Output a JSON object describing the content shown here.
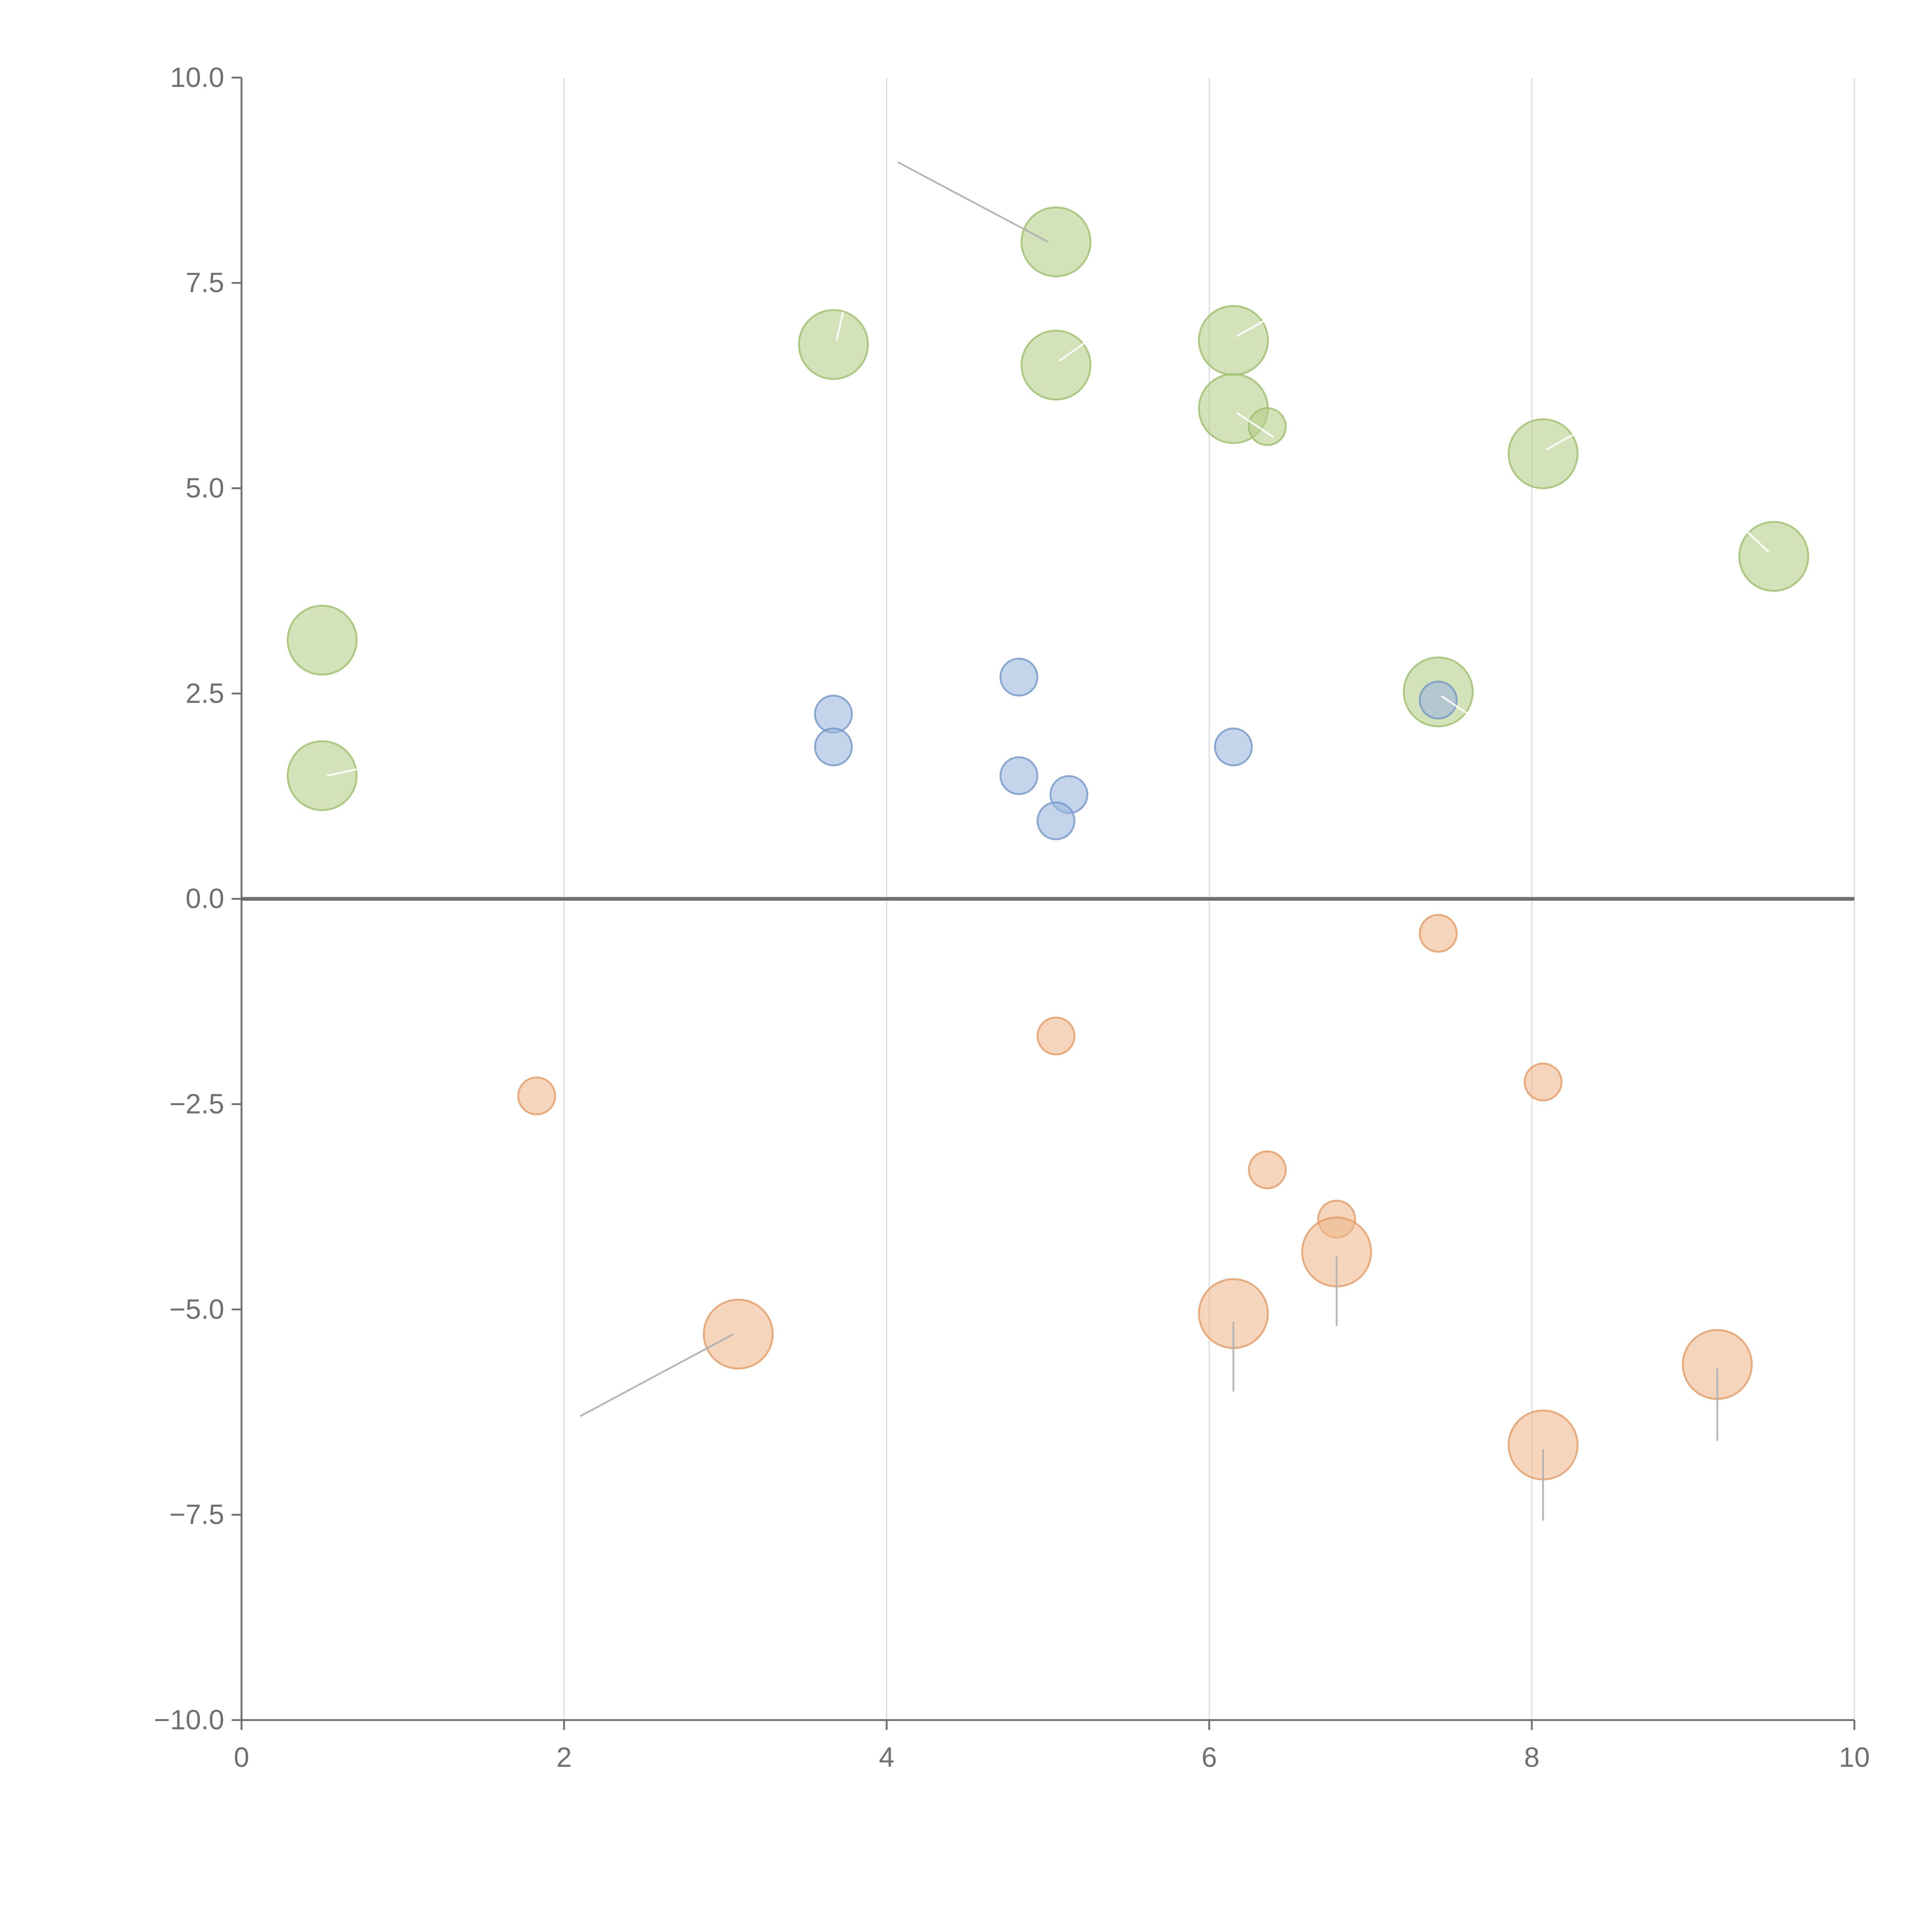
{
  "chart_data": {
    "type": "scatter",
    "title": "",
    "xlabel": "",
    "ylabel": "",
    "xlim": [
      0,
      10
    ],
    "ylim": [
      -10,
      10
    ],
    "x_ticks": [
      0,
      2,
      4,
      6,
      8,
      10
    ],
    "x_tick_labels": [
      "0",
      "2",
      "4",
      "6",
      "8",
      "10"
    ],
    "y_ticks": [
      10,
      7.5,
      5,
      2.5,
      0,
      -2.5,
      -5,
      -7.5,
      -10
    ],
    "y_tick_labels": [
      "10.0",
      "7.5",
      "5.0",
      "2.5",
      "0.0",
      "−2.5",
      "−5.0",
      "−7.5",
      "−10.0"
    ],
    "grid": "vertical",
    "zero_line": true,
    "series": [
      {
        "name": "green",
        "color": "#b5cf8a",
        "stroke": "#9cbf6a",
        "points": [
          {
            "x": 5.05,
            "y": 8.0,
            "size": 1.0
          },
          {
            "x": 3.67,
            "y": 6.75,
            "size": 1.0
          },
          {
            "x": 5.05,
            "y": 6.5,
            "size": 1.0
          },
          {
            "x": 6.15,
            "y": 6.8,
            "size": 1.0
          },
          {
            "x": 6.15,
            "y": 5.97,
            "size": 1.0
          },
          {
            "x": 6.36,
            "y": 5.75,
            "size": 0.5
          },
          {
            "x": 8.07,
            "y": 5.42,
            "size": 1.0
          },
          {
            "x": 9.5,
            "y": 4.17,
            "size": 1.0
          },
          {
            "x": 0.5,
            "y": 3.15,
            "size": 1.0
          },
          {
            "x": 0.5,
            "y": 1.5,
            "size": 1.0
          },
          {
            "x": 7.42,
            "y": 2.52,
            "size": 1.0
          }
        ]
      },
      {
        "name": "blue",
        "color": "#9db7dc",
        "stroke": "#7396c8",
        "points": [
          {
            "x": 3.67,
            "y": 2.25,
            "size": 0.5
          },
          {
            "x": 3.67,
            "y": 1.85,
            "size": 0.5
          },
          {
            "x": 4.82,
            "y": 2.7,
            "size": 0.5
          },
          {
            "x": 4.82,
            "y": 1.5,
            "size": 0.5
          },
          {
            "x": 5.13,
            "y": 1.27,
            "size": 0.5
          },
          {
            "x": 5.05,
            "y": 0.95,
            "size": 0.5
          },
          {
            "x": 6.15,
            "y": 1.85,
            "size": 0.5
          },
          {
            "x": 7.42,
            "y": 2.42,
            "size": 0.5
          }
        ]
      },
      {
        "name": "orange",
        "color": "#eeb98d",
        "stroke": "#e39a62",
        "points": [
          {
            "x": 7.42,
            "y": -0.42,
            "size": 0.5
          },
          {
            "x": 5.05,
            "y": -1.67,
            "size": 0.5
          },
          {
            "x": 1.83,
            "y": -2.4,
            "size": 0.5
          },
          {
            "x": 8.07,
            "y": -2.23,
            "size": 0.5
          },
          {
            "x": 6.36,
            "y": -3.3,
            "size": 0.5
          },
          {
            "x": 6.79,
            "y": -3.9,
            "size": 0.5
          },
          {
            "x": 6.79,
            "y": -4.3,
            "size": 1.0
          },
          {
            "x": 3.08,
            "y": -5.3,
            "size": 1.0
          },
          {
            "x": 6.15,
            "y": -5.05,
            "size": 1.0
          },
          {
            "x": 9.15,
            "y": -5.67,
            "size": 1.0
          },
          {
            "x": 8.07,
            "y": -6.65,
            "size": 1.0
          }
        ]
      }
    ],
    "leader_lines": [
      {
        "x1": 5.0,
        "y1": 8.0,
        "x2": 4.07,
        "y2": 8.97,
        "color": "#b0b0b0"
      },
      {
        "x1": 3.05,
        "y1": -5.3,
        "x2": 2.1,
        "y2": -6.3,
        "color": "#b0b0b0"
      },
      {
        "x1": 6.15,
        "y1": -5.15,
        "x2": 6.15,
        "y2": -6.0,
        "color": "#b0b0b0"
      },
      {
        "x1": 6.79,
        "y1": -4.35,
        "x2": 6.79,
        "y2": -5.2,
        "color": "#b0b0b0"
      },
      {
        "x1": 8.07,
        "y1": -6.7,
        "x2": 8.07,
        "y2": -7.57,
        "color": "#b0b0b0"
      },
      {
        "x1": 9.15,
        "y1": -5.72,
        "x2": 9.15,
        "y2": -6.6,
        "color": "#b0b0b0"
      },
      {
        "x1": 3.69,
        "y1": 6.8,
        "x2": 3.73,
        "y2": 7.15,
        "color": "#ffffff"
      },
      {
        "x1": 5.07,
        "y1": 6.55,
        "x2": 5.25,
        "y2": 6.8,
        "color": "#ffffff"
      },
      {
        "x1": 6.17,
        "y1": 6.85,
        "x2": 6.35,
        "y2": 7.05,
        "color": "#ffffff"
      },
      {
        "x1": 6.17,
        "y1": 5.92,
        "x2": 6.4,
        "y2": 5.62,
        "color": "#ffffff"
      },
      {
        "x1": 8.09,
        "y1": 5.47,
        "x2": 8.3,
        "y2": 5.7,
        "color": "#ffffff"
      },
      {
        "x1": 9.47,
        "y1": 4.22,
        "x2": 9.32,
        "y2": 4.5,
        "color": "#ffffff"
      },
      {
        "x1": 0.53,
        "y1": 1.5,
        "x2": 0.72,
        "y2": 1.58,
        "color": "#ffffff"
      },
      {
        "x1": 7.44,
        "y1": 2.47,
        "x2": 7.62,
        "y2": 2.23,
        "color": "#ffffff"
      }
    ],
    "colors": {
      "axis": "#707070",
      "grid": "#dddddd",
      "zero_line": "#707070"
    }
  }
}
